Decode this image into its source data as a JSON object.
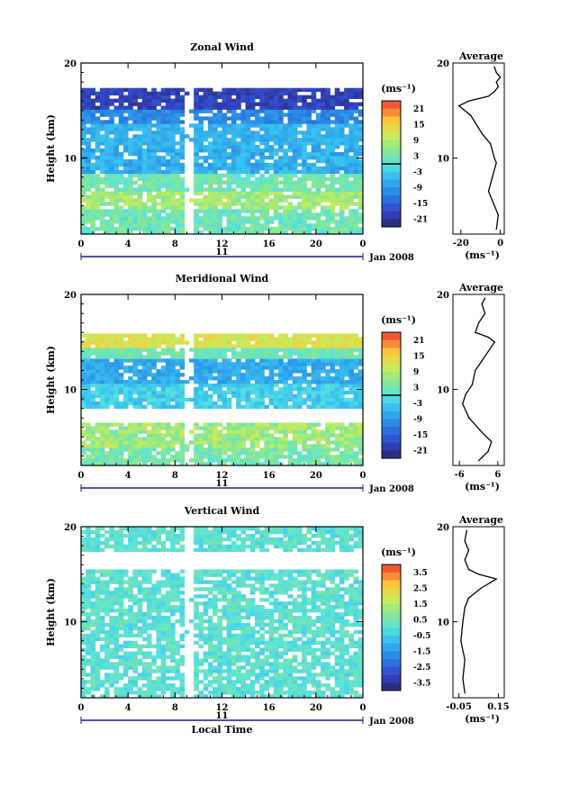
{
  "figure": {
    "x_label": "Local Time",
    "date_label": "Jan 2008",
    "day_label": "11"
  },
  "chart_data": [
    {
      "type": "heatmap",
      "title": "Zonal Wind",
      "ylabel": "Height (km)",
      "xlim": [
        0,
        24
      ],
      "ylim": [
        2,
        20
      ],
      "x_ticks": [
        "0",
        "4",
        "8",
        "12",
        "16",
        "20",
        "0"
      ],
      "y_ticks": [
        "20",
        "10"
      ],
      "colorbar": {
        "unit": "(ms⁻¹)",
        "ticks": [
          "21",
          "15",
          "9",
          "3",
          "-3",
          "-9",
          "-15",
          "-21"
        ],
        "range": [
          -24,
          24
        ],
        "zero_line": true
      },
      "profile": {
        "title": "Average",
        "xlabel": "(ms⁻¹)",
        "x_ticks": [
          "-20",
          "0"
        ],
        "xlim": [
          -24,
          2
        ],
        "points": [
          [
            -2,
            2.5
          ],
          [
            -1,
            4
          ],
          [
            -3,
            5
          ],
          [
            -6,
            6.5
          ],
          [
            -4,
            8
          ],
          [
            -2,
            9.5
          ],
          [
            -3,
            10
          ],
          [
            -5,
            11.5
          ],
          [
            -9,
            12.5
          ],
          [
            -12,
            13.5
          ],
          [
            -15,
            14.5
          ],
          [
            -21,
            15.5
          ],
          [
            -16,
            16
          ],
          [
            -6,
            16.5
          ],
          [
            -3,
            17
          ],
          [
            -1,
            17.5
          ],
          [
            -2,
            18
          ],
          [
            0,
            18.5
          ],
          [
            -2,
            19
          ],
          [
            -3,
            19.6
          ]
        ]
      },
      "series": [
        {
          "name": "",
          "values": []
        }
      ]
    },
    {
      "type": "heatmap",
      "title": "Meridional Wind",
      "ylabel": "Height (km)",
      "xlim": [
        0,
        24
      ],
      "ylim": [
        2,
        20
      ],
      "x_ticks": [
        "0",
        "4",
        "8",
        "12",
        "16",
        "20",
        "0"
      ],
      "y_ticks": [
        "20",
        "10"
      ],
      "colorbar": {
        "unit": "(ms⁻¹)",
        "ticks": [
          "21",
          "15",
          "9",
          "3",
          "-3",
          "-9",
          "-15",
          "-21"
        ],
        "range": [
          -24,
          24
        ],
        "zero_line": true
      },
      "profile": {
        "title": "Average",
        "xlabel": "(ms⁻¹)",
        "x_ticks": [
          "-6",
          "6"
        ],
        "xlim": [
          -8,
          8
        ],
        "points": [
          [
            0,
            2.5
          ],
          [
            3,
            3.5
          ],
          [
            4,
            4.5
          ],
          [
            1,
            5.5
          ],
          [
            -3,
            7
          ],
          [
            -5,
            8.5
          ],
          [
            -4,
            9.5
          ],
          [
            -2,
            10.5
          ],
          [
            -1,
            12
          ],
          [
            1,
            13
          ],
          [
            3,
            14
          ],
          [
            5,
            15
          ],
          [
            3,
            15.5
          ],
          [
            -1,
            16
          ],
          [
            0,
            17
          ],
          [
            2,
            18
          ],
          [
            1,
            19
          ],
          [
            2,
            19.6
          ]
        ]
      },
      "series": [
        {
          "name": "",
          "values": []
        }
      ]
    },
    {
      "type": "heatmap",
      "title": "Vertical Wind",
      "ylabel": "Height (km)",
      "xlabel": "Local Time",
      "xlim": [
        0,
        24
      ],
      "ylim": [
        2,
        20
      ],
      "x_ticks": [
        "0",
        "4",
        "8",
        "12",
        "16",
        "20",
        "0"
      ],
      "y_ticks": [
        "20",
        "10"
      ],
      "colorbar": {
        "unit": "(ms⁻¹)",
        "ticks": [
          "3.5",
          "2.5",
          "1.5",
          "0.5",
          "-0.5",
          "-1.5",
          "-2.5",
          "-3.5"
        ],
        "range": [
          -4,
          4
        ],
        "zero_line": false
      },
      "profile": {
        "title": "Average",
        "xlabel": "(ms⁻¹)",
        "x_ticks": [
          "-0.05",
          "0.15"
        ],
        "xlim": [
          -0.08,
          0.18
        ],
        "points": [
          [
            -0.02,
            2.5
          ],
          [
            -0.03,
            4
          ],
          [
            -0.02,
            6
          ],
          [
            -0.04,
            8
          ],
          [
            -0.03,
            10
          ],
          [
            -0.02,
            11.5
          ],
          [
            0.0,
            12.5
          ],
          [
            0.06,
            13.5
          ],
          [
            0.14,
            14.5
          ],
          [
            0.05,
            15
          ],
          [
            0.0,
            15.5
          ],
          [
            -0.02,
            16.5
          ],
          [
            0.0,
            17.5
          ],
          [
            -0.02,
            18.5
          ],
          [
            -0.01,
            19.6
          ]
        ]
      },
      "series": [
        {
          "name": "",
          "values": []
        }
      ]
    }
  ]
}
